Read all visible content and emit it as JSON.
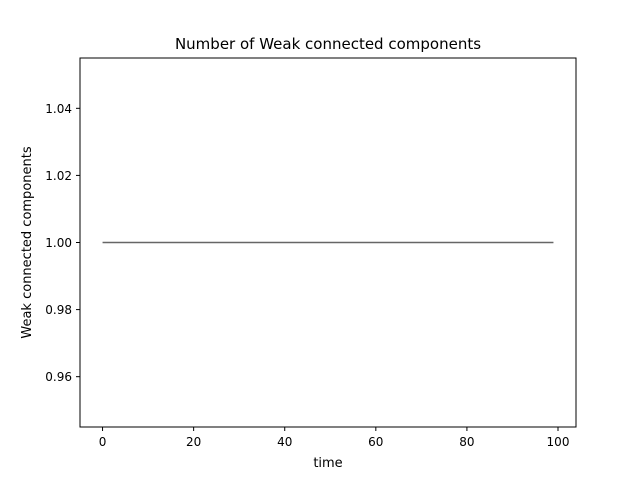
{
  "chart_data": {
    "type": "line",
    "title": "Number of Weak connected components",
    "xlabel": "time",
    "ylabel": "Weak connected components",
    "xlim": [
      -4.95,
      103.95
    ],
    "ylim": [
      0.945,
      1.055
    ],
    "xticks": [
      0,
      20,
      40,
      60,
      80,
      100
    ],
    "xtick_labels": [
      "0",
      "20",
      "40",
      "60",
      "80",
      "100"
    ],
    "yticks": [
      0.96,
      0.98,
      1.0,
      1.02,
      1.04
    ],
    "ytick_labels": [
      "0.96",
      "0.98",
      "1.00",
      "1.02",
      "1.04"
    ],
    "grid": false,
    "series": [
      {
        "x": [
          0,
          99
        ],
        "y": [
          1.0,
          1.0
        ],
        "color": "#666666"
      }
    ]
  }
}
